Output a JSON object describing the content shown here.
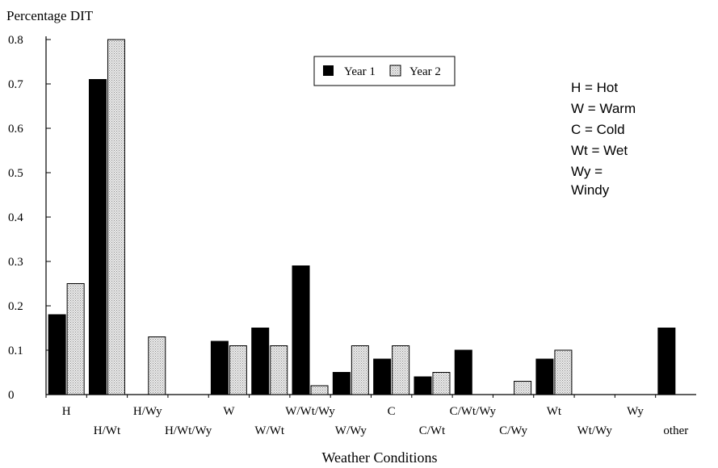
{
  "chart_data": {
    "type": "bar",
    "ylabel": "Percentage DIT",
    "xlabel": "Weather Conditions",
    "ylim": [
      0,
      0.8
    ],
    "yticks": [
      "0",
      "0.1",
      "0.2",
      "0.3",
      "0.4",
      "0.5",
      "0.6",
      "0.7",
      "0.8"
    ],
    "categories": [
      "H",
      "H/Wt",
      "H/Wy",
      "H/Wt/Wy",
      "W",
      "W/Wt",
      "W/Wt/Wy",
      "W/Wy",
      "C",
      "C/Wt",
      "C/Wt/Wy",
      "C/Wy",
      "Wt",
      "Wt/Wy",
      "Wy",
      "other"
    ],
    "series": [
      {
        "name": "Year 1",
        "color": "#000000",
        "values": [
          0.18,
          0.71,
          0,
          0,
          0.12,
          0.15,
          0.29,
          0.05,
          0.08,
          0.04,
          0.1,
          0,
          0.08,
          0,
          0,
          0.15
        ]
      },
      {
        "name": "Year 2",
        "color": "#d9d9d9",
        "values": [
          0.25,
          0.8,
          0.13,
          0,
          0.11,
          0.11,
          0.02,
          0.11,
          0.11,
          0.05,
          0,
          0.03,
          0.1,
          0,
          0,
          0
        ]
      }
    ],
    "grid": false,
    "legend_position": "top-center",
    "annotation": [
      "H = Hot",
      "W = Warm",
      "C = Cold",
      "Wt = Wet",
      "Wy =",
      "Windy"
    ]
  }
}
